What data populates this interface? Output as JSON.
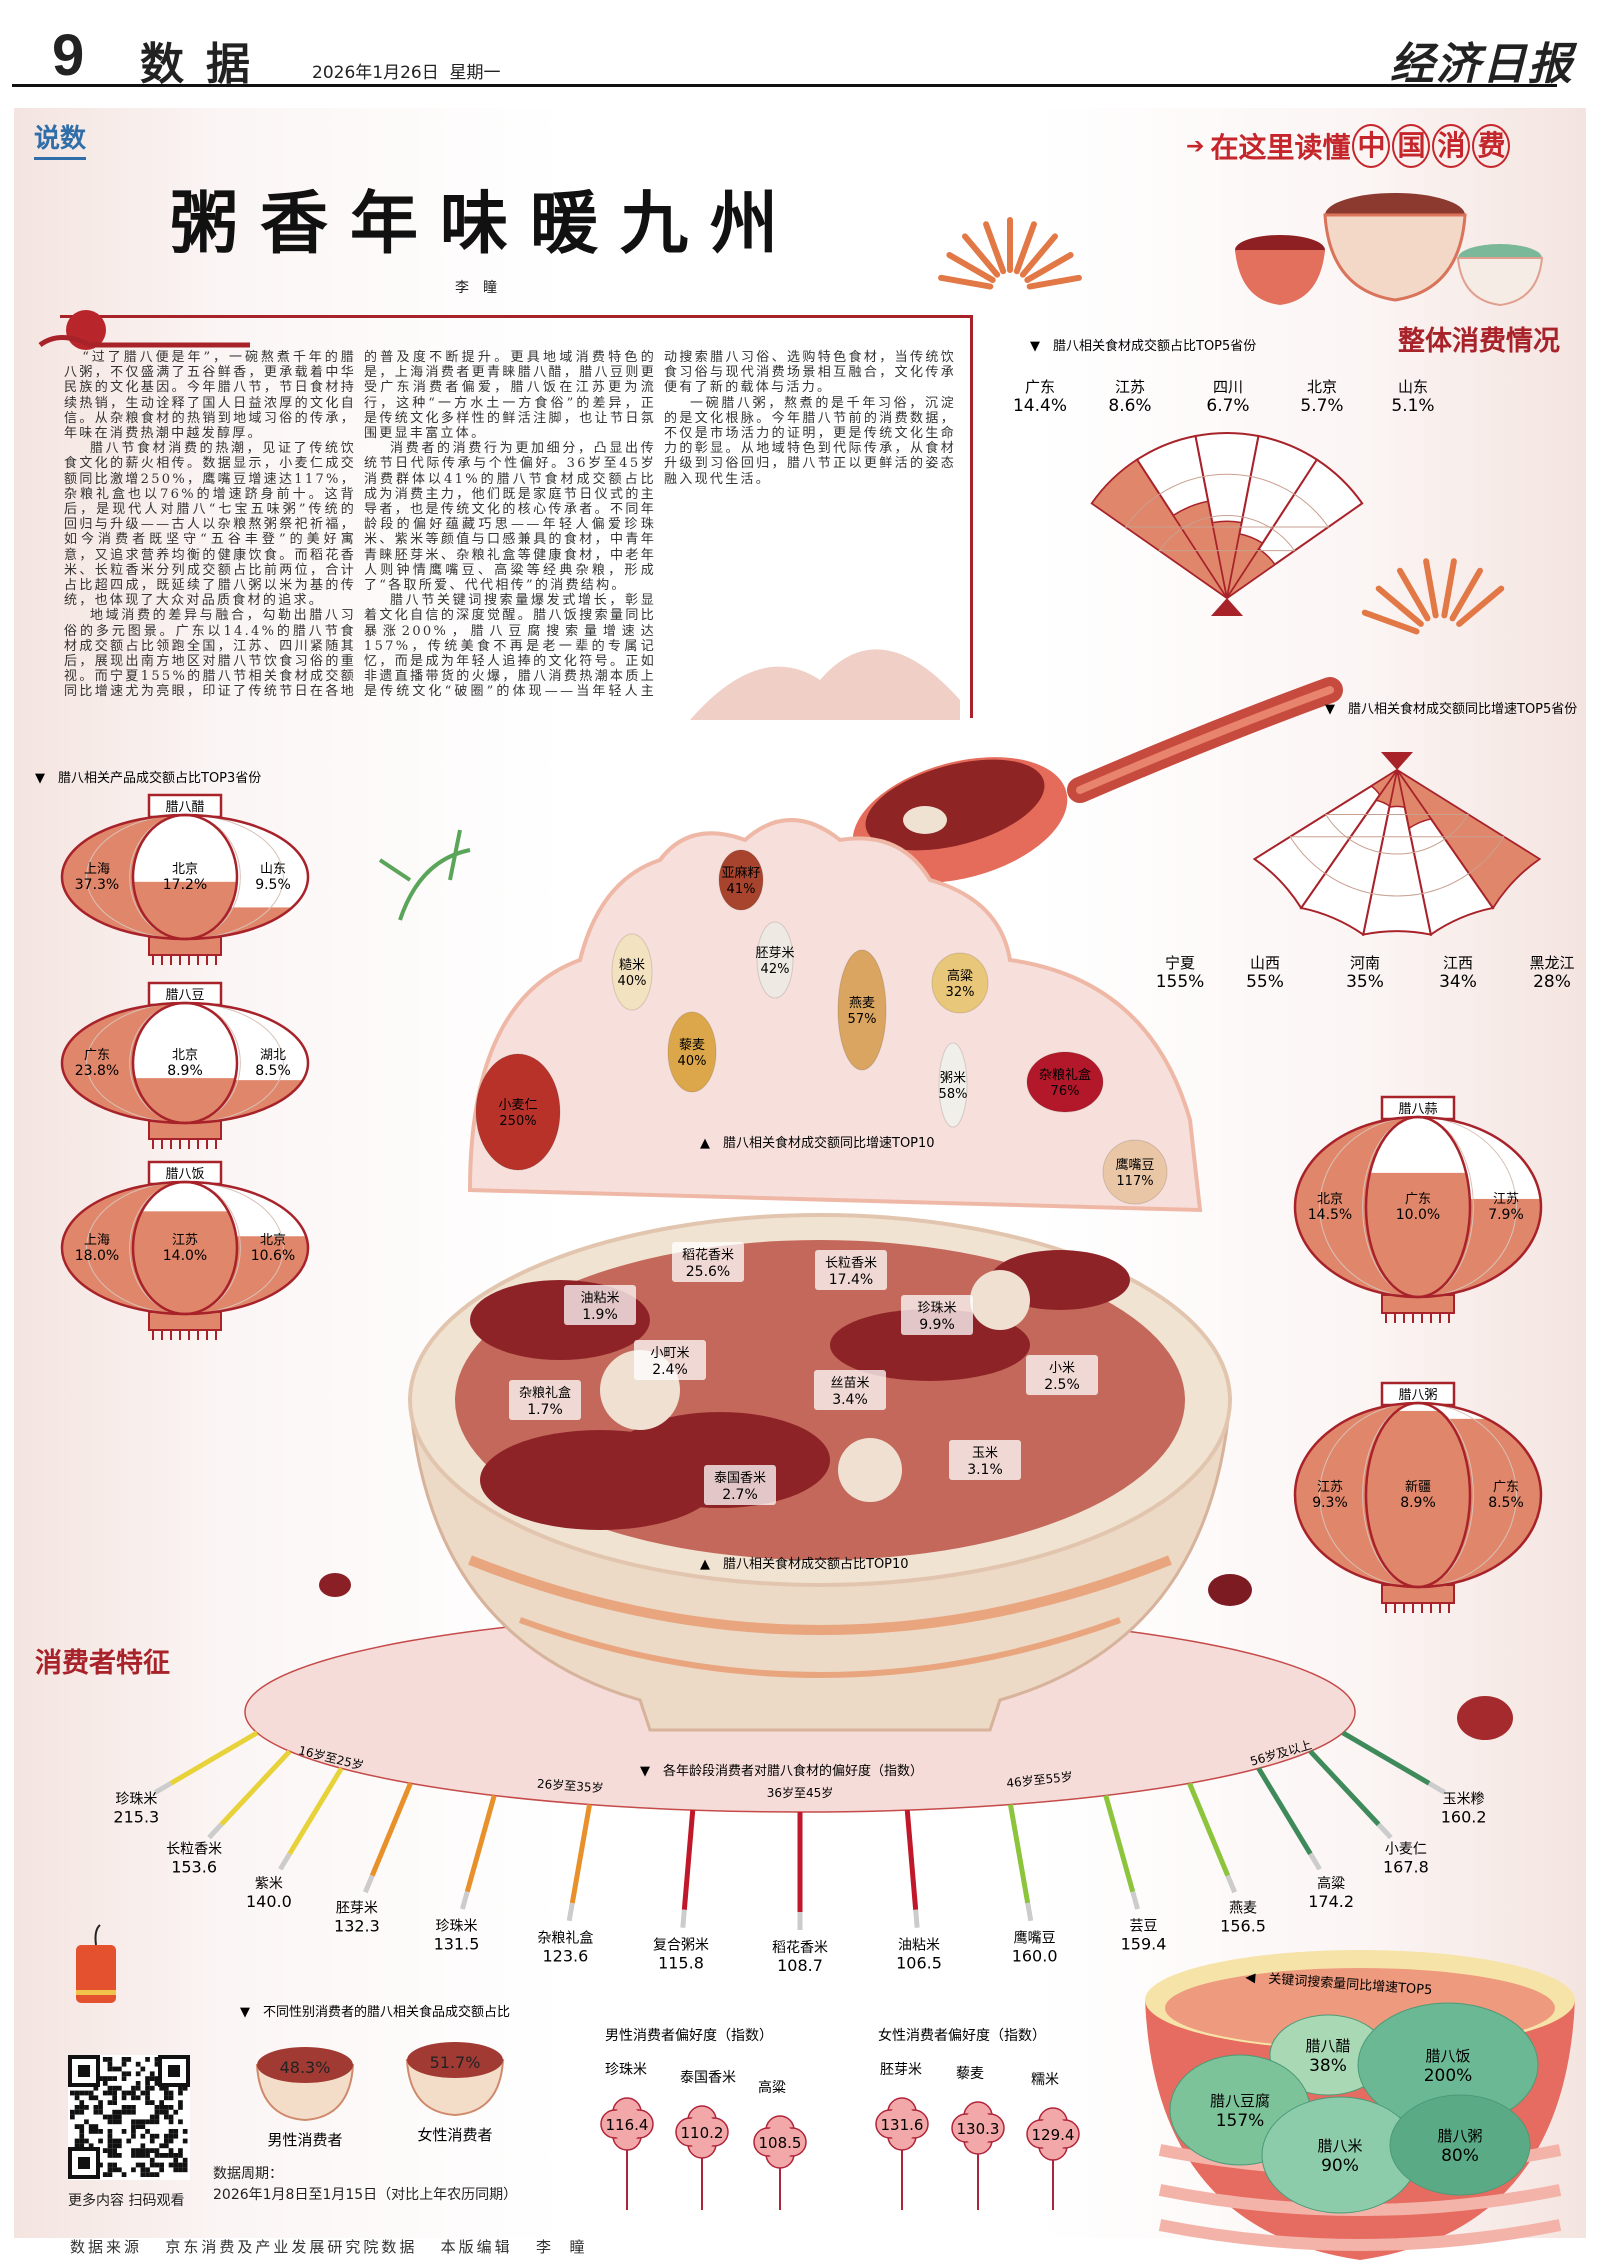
{
  "header": {
    "page_number": "9",
    "section": "数据",
    "date": "2026年1月26日  星期一",
    "masthead": "经济日报"
  },
  "column_tag": "说数",
  "banner": {
    "prefix": "在这里读懂",
    "circled": [
      "中",
      "国",
      "消",
      "费"
    ]
  },
  "title": "粥香年味暖九州",
  "author": "李瞳",
  "article": {
    "paragraphs": [
      "“过了腊八便是年”，一碗熬煮千年的腊八粥，不仅盛满了五谷鲜香，更承载着中华民族的文化基因。今年腊八节，节日食材持续热销，生动诠释了国人日益浓厚的文化自信。从杂粮食材的热销到地域习俗的传承，年味在消费热潮中越发醇厚。",
      "腊八节食材消费的热潮，见证了传统饮食文化的薪火相传。数据显示，小麦仁成交额同比激增250%，鹰嘴豆增速达117%，杂粮礼盒也以76%的增速跻身前十。这背后，是现代人对腊八“七宝五味粥”传统的回归与升级——古人以杂粮熬粥祭祀祈福，如今消费者既坚守“五谷丰登”的美好寓意，又追求营养均衡的健康饮食。而稻花香米、长粒香米分列成交额占比前两位，合计占比超四成，既延续了腊八粥以米为基的传统，也体现了大众对品质食材的追求。",
      "地域消费的差异与融合，勾勒出腊八习俗的多元图景。广东以14.4%的腊八节食材成交额占比领跑全国，江苏、四川紧随其后，展现出南方地区对腊八节饮食习俗的重视。而宁夏155%的腊八节相关食材成交额同比增速尤为亮眼，印证了传统节日在各地的普及度不断提升。更具地域消费特色的是，上海消费者更青睐腊八醋，腊八豆则更受广东消费者偏爱，腊八饭在江苏更为流行，这种“一方水土一方食俗”的差异，正是传统文化多样性的鲜活注脚，也让节日氛围更显丰富立体。",
      "消费者的消费行为更加细分，凸显出传统节日代际传承与个性偏好。36岁至45岁消费群体以41%的腊八节食材成交额占比成为消费主力，他们既是家庭节日仪式的主导者，也是传统文化的核心传承者。不同年龄段的偏好蕴藏巧思——年轻人偏爱珍珠米、紫米等颜值与口感兼具的食材，中青年青睐胚芽米、杂粮礼盒等健康食材，中老年人则钟情鹰嘴豆、高粱等经典杂粮，形成了“各取所爱、代代相传”的消费结构。",
      "腊八节关键词搜索量爆发式增长，彰显着文化自信的深度觉醒。腊八饭搜索量同比暴涨200%，腊八豆腐搜索量增速达157%，传统美食不再是老一辈的专属记忆，而是成为年轻人追捧的文化符号。正如非遗直播带货的火爆，腊八消费热潮本质上是传统文化“破圈”的体现——当年轻人主动搜索腊八习俗、选购特色食材，当传统饮食习俗与现代消费场景相互融合，文化传承便有了新的载体与活力。",
      "一碗腊八粥，熬煮的是千年习俗，沉淀的是文化根脉。今年腊八节前的消费数据，不仅是市场活力的证明，更是传统文化生命力的彰显。从地域特色到代际传承，从食材升级到习俗回归，腊八节正以更鲜活的姿态融入现代生活。"
    ]
  },
  "colors": {
    "brand_red": "#a8222a",
    "fill_salmon": "#e0866a",
    "age_16_25": "#e8d23a",
    "age_26_35": "#e8902a",
    "age_36_45": "#c0182a",
    "age_46_55": "#8cc43c",
    "age_56_plus": "#3f8a5a",
    "egg_green": "#7cc39a"
  },
  "overall": {
    "heading": "整体消费情况",
    "share_top5": {
      "title": "腊八相关食材成交额占比TOP5省份",
      "items": [
        {
          "name": "广东",
          "value": "14.4%"
        },
        {
          "name": "江苏",
          "value": "8.6%"
        },
        {
          "name": "四川",
          "value": "6.7%"
        },
        {
          "name": "北京",
          "value": "5.7%"
        },
        {
          "name": "山东",
          "value": "5.1%"
        }
      ]
    },
    "growth_top5": {
      "title": "腊八相关食材成交额同比增速TOP5省份",
      "items": [
        {
          "name": "宁夏",
          "value": "155%"
        },
        {
          "name": "山西",
          "value": "55%"
        },
        {
          "name": "河南",
          "value": "35%"
        },
        {
          "name": "江西",
          "value": "34%"
        },
        {
          "name": "黑龙江",
          "value": "28%"
        }
      ]
    }
  },
  "lanterns": {
    "title": "腊八相关产品成交额占比TOP3省份",
    "items": [
      {
        "product": "腊八醋",
        "provinces": [
          {
            "name": "上海",
            "value": "37.3%"
          },
          {
            "name": "北京",
            "value": "17.2%"
          },
          {
            "name": "山东",
            "value": "9.5%"
          }
        ]
      },
      {
        "product": "腊八豆",
        "provinces": [
          {
            "name": "广东",
            "value": "23.8%"
          },
          {
            "name": "北京",
            "value": "8.9%"
          },
          {
            "name": "湖北",
            "value": "8.5%"
          }
        ]
      },
      {
        "product": "腊八饭",
        "provinces": [
          {
            "name": "上海",
            "value": "18.0%"
          },
          {
            "name": "江苏",
            "value": "14.0%"
          },
          {
            "name": "北京",
            "value": "10.6%"
          }
        ]
      },
      {
        "product": "腊八蒜",
        "provinces": [
          {
            "name": "北京",
            "value": "14.5%"
          },
          {
            "name": "广东",
            "value": "10.0%"
          },
          {
            "name": "江苏",
            "value": "7.9%"
          }
        ]
      },
      {
        "product": "腊八粥",
        "provinces": [
          {
            "name": "江苏",
            "value": "9.3%"
          },
          {
            "name": "新疆",
            "value": "8.9%"
          },
          {
            "name": "广东",
            "value": "8.5%"
          }
        ]
      }
    ]
  },
  "ingredient_growth_top10": {
    "title": "腊八相关食材成交额同比增速TOP10",
    "items": [
      {
        "name": "小麦仁",
        "value": "250%"
      },
      {
        "name": "鹰嘴豆",
        "value": "117%"
      },
      {
        "name": "杂粮礼盒",
        "value": "76%"
      },
      {
        "name": "粥米",
        "value": "58%"
      },
      {
        "name": "燕麦",
        "value": "57%"
      },
      {
        "name": "胚芽米",
        "value": "42%"
      },
      {
        "name": "亚麻籽",
        "value": "41%"
      },
      {
        "name": "糙米",
        "value": "40%"
      },
      {
        "name": "藜麦",
        "value": "40%"
      },
      {
        "name": "高粱",
        "value": "32%"
      }
    ]
  },
  "ingredient_share_top10": {
    "title": "腊八相关食材成交额占比TOP10",
    "items": [
      {
        "name": "稻花香米",
        "value": "25.6%"
      },
      {
        "name": "长粒香米",
        "value": "17.4%"
      },
      {
        "name": "珍珠米",
        "value": "9.9%"
      },
      {
        "name": "丝苗米",
        "value": "3.4%"
      },
      {
        "name": "玉米",
        "value": "3.1%"
      },
      {
        "name": "泰国香米",
        "value": "2.7%"
      },
      {
        "name": "小米",
        "value": "2.5%"
      },
      {
        "name": "小町米",
        "value": "2.4%"
      },
      {
        "name": "油粘米",
        "value": "1.9%"
      },
      {
        "name": "杂粮礼盒",
        "value": "1.7%"
      }
    ]
  },
  "consumer": {
    "heading": "消费者特征",
    "age": {
      "title": "各年龄段消费者对腊八食材的偏好度（指数）",
      "groups": [
        {
          "label": "16岁至25岁",
          "items": [
            {
              "name": "珍珠米",
              "value": "215.3"
            },
            {
              "name": "长粒香米",
              "value": "153.6"
            },
            {
              "name": "紫米",
              "value": "140.0"
            }
          ]
        },
        {
          "label": "26岁至35岁",
          "items": [
            {
              "name": "胚芽米",
              "value": "132.3"
            },
            {
              "name": "珍珠米",
              "value": "131.5"
            },
            {
              "name": "杂粮礼盒",
              "value": "123.6"
            }
          ]
        },
        {
          "label": "36岁至45岁",
          "items": [
            {
              "name": "复合粥米",
              "value": "115.8"
            },
            {
              "name": "稻花香米",
              "value": "108.7"
            },
            {
              "name": "油粘米",
              "value": "106.5"
            }
          ]
        },
        {
          "label": "46岁至55岁",
          "items": [
            {
              "name": "鹰嘴豆",
              "value": "160.0"
            },
            {
              "name": "芸豆",
              "value": "159.4"
            },
            {
              "name": "燕麦",
              "value": "156.5"
            }
          ]
        },
        {
          "label": "56岁及以上",
          "items": [
            {
              "name": "高粱",
              "value": "174.2"
            },
            {
              "name": "小麦仁",
              "value": "167.8"
            },
            {
              "name": "玉米糁",
              "value": "160.2"
            }
          ]
        }
      ]
    },
    "gender": {
      "title": "不同性别消费者的腊八相关食品成交额占比",
      "items": [
        {
          "label": "男性消费者",
          "value": "48.3%"
        },
        {
          "label": "女性消费者",
          "value": "51.7%"
        }
      ]
    },
    "male_pref": {
      "title": "男性消费者偏好度（指数）",
      "items": [
        {
          "name": "珍珠米",
          "value": "116.4"
        },
        {
          "name": "泰国香米",
          "value": "110.2"
        },
        {
          "name": "高粱",
          "value": "108.5"
        }
      ]
    },
    "female_pref": {
      "title": "女性消费者偏好度（指数）",
      "items": [
        {
          "name": "胚芽米",
          "value": "131.6"
        },
        {
          "name": "藜麦",
          "value": "130.3"
        },
        {
          "name": "糯米",
          "value": "129.4"
        }
      ]
    },
    "period": {
      "label": "数据周期：",
      "value": "2026年1月8日至1月15日（对比上年农历同期）"
    }
  },
  "search_top5": {
    "title": "关键词搜索量同比增速TOP5",
    "items": [
      {
        "name": "腊八饭",
        "value": "200%"
      },
      {
        "name": "腊八豆腐",
        "value": "157%"
      },
      {
        "name": "腊八米",
        "value": "90%"
      },
      {
        "name": "腊八粥",
        "value": "80%"
      },
      {
        "name": "腊八醋",
        "value": "38%"
      }
    ]
  },
  "qr": {
    "caption": "更多内容 扫码观看"
  },
  "footer": {
    "source_label": "数据来源",
    "source": "京东消费及产业发展研究院数据",
    "editor_label": "本版编辑",
    "editor": "李  瞳"
  }
}
